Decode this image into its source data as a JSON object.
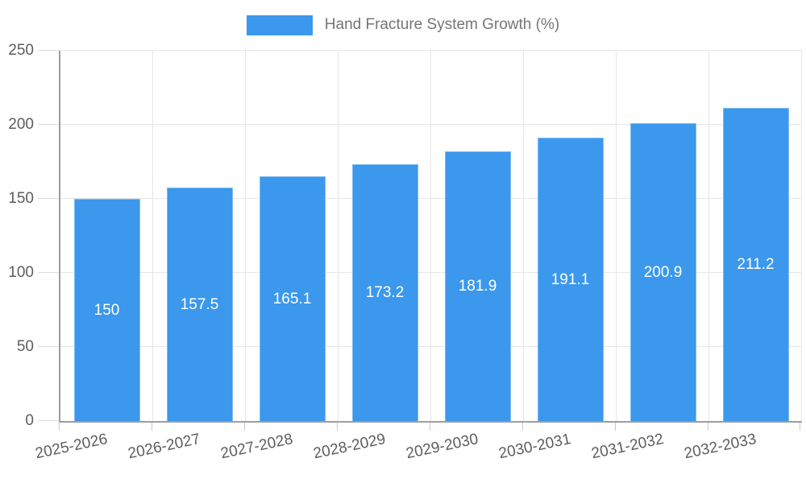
{
  "legend": {
    "label": "Hand Fracture System Growth (%)"
  },
  "chart_data": {
    "type": "bar",
    "title": "Hand Fracture System Growth (%)",
    "categories": [
      "2025-2026",
      "2026-2027",
      "2027-2028",
      "2028-2029",
      "2029-2030",
      "2030-2031",
      "2031-2032",
      "2032-2033"
    ],
    "values": [
      150,
      157.5,
      165.1,
      173.2,
      181.9,
      191.1,
      200.9,
      211.2
    ],
    "value_labels": [
      "150",
      "157.5",
      "165.1",
      "173.2",
      "181.9",
      "191.1",
      "200.9",
      "211.2"
    ],
    "xlabel": "",
    "ylabel": "",
    "ylim": [
      0,
      250
    ],
    "ytick_step": 50,
    "ytick_labels": [
      "0",
      "50",
      "100",
      "150",
      "200",
      "250"
    ],
    "grid": "both",
    "legend_position": "top-center",
    "x_label_rotation_deg": -12,
    "colors": {
      "bar": "#3b98ec",
      "value_label": "#ffffff",
      "axis_line": "#9e9e9e",
      "gridline": "#e6e6e6",
      "tick_text": "#5b5d60",
      "legend_text": "#757575",
      "background": "#ffffff"
    }
  }
}
